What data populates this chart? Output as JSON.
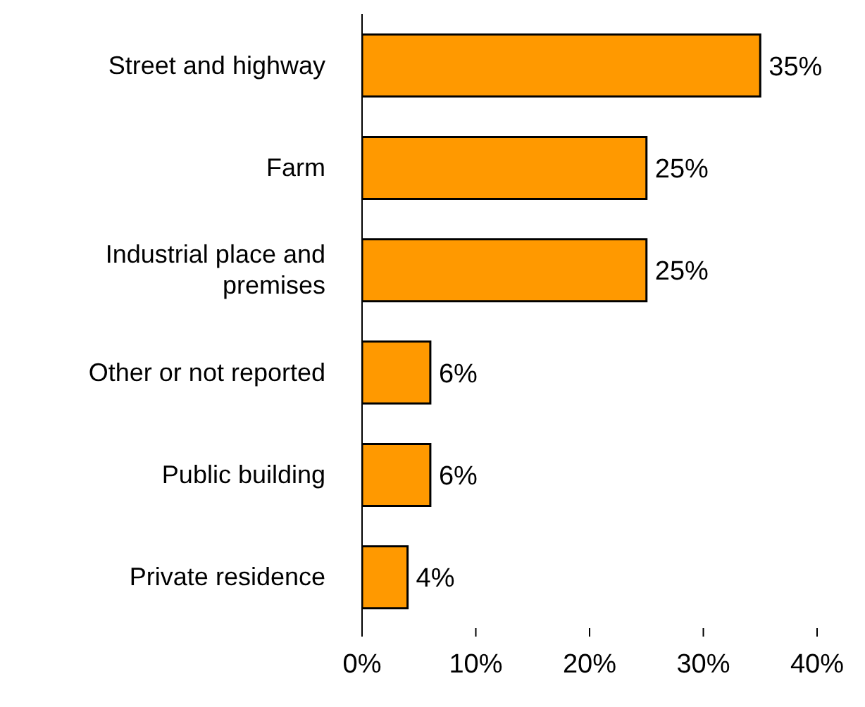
{
  "chart_data": {
    "type": "bar",
    "orientation": "horizontal",
    "categories": [
      "Street and highway",
      "Farm",
      "Industrial place and premises",
      "Other or not reported",
      "Public building",
      "Private residence"
    ],
    "values": [
      35,
      25,
      25,
      6,
      6,
      4
    ],
    "value_labels": [
      "35%",
      "25%",
      "25%",
      "6%",
      "6%",
      "4%"
    ],
    "color": "#ff9900",
    "xlim": [
      0,
      40
    ],
    "xticks": [
      {
        "value": 0,
        "label": "0%"
      },
      {
        "value": 10,
        "label": "10%"
      },
      {
        "value": 20,
        "label": "20%"
      },
      {
        "value": 30,
        "label": "30%"
      },
      {
        "value": 40,
        "label": "40%"
      }
    ],
    "grid": false,
    "legend": false
  }
}
